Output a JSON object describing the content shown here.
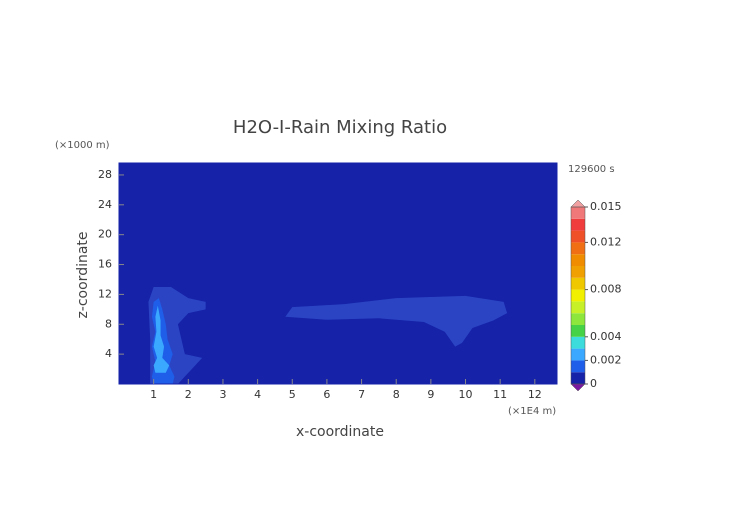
{
  "chart_data": {
    "type": "contour",
    "title": "H2O-I-Rain Mixing Ratio",
    "x_label": "x-coordinate",
    "y_label": "z-coordinate",
    "x_unit": "(×1E4 m)",
    "y_unit": "(×1000 m)",
    "time_label": "129600 s",
    "xlim": [
      0,
      12.64
    ],
    "ylim": [
      0,
      29.6
    ],
    "xticks": [
      1,
      2,
      3,
      4,
      5,
      6,
      7,
      8,
      9,
      10,
      11,
      12
    ],
    "yticks": [
      4,
      8,
      12,
      16,
      20,
      24,
      28
    ],
    "background_color": "#1622a8",
    "contours": [
      {
        "level": 0.0005,
        "color": "#2a44c4",
        "points": [
          [
            0.9,
            0
          ],
          [
            1.7,
            0
          ],
          [
            2.1,
            2
          ],
          [
            2.4,
            3.5
          ],
          [
            1.9,
            4
          ],
          [
            1.7,
            8
          ],
          [
            2.0,
            9.5
          ],
          [
            2.5,
            10
          ],
          [
            2.5,
            11
          ],
          [
            2.0,
            11.5
          ],
          [
            1.5,
            13
          ],
          [
            1.0,
            13
          ],
          [
            0.85,
            11
          ],
          [
            0.9,
            6
          ]
        ]
      },
      {
        "level": 0.0005,
        "color": "#2a44c4",
        "points": [
          [
            4.8,
            9
          ],
          [
            6,
            8.6
          ],
          [
            7.5,
            8.8
          ],
          [
            8.8,
            8.3
          ],
          [
            9.4,
            7
          ],
          [
            9.7,
            5
          ],
          [
            9.9,
            5.5
          ],
          [
            10.2,
            7.5
          ],
          [
            10.8,
            8.5
          ],
          [
            11.2,
            9.5
          ],
          [
            11.1,
            11
          ],
          [
            10,
            11.8
          ],
          [
            8,
            11.5
          ],
          [
            6.5,
            10.7
          ],
          [
            5,
            10.3
          ]
        ]
      },
      {
        "level": 0.001,
        "color": "#1e5ee8",
        "points": [
          [
            1.0,
            0
          ],
          [
            1.55,
            0
          ],
          [
            1.6,
            1
          ],
          [
            1.45,
            2.5
          ],
          [
            1.55,
            4
          ],
          [
            1.4,
            6
          ],
          [
            1.35,
            8
          ],
          [
            1.25,
            10
          ],
          [
            1.15,
            11.5
          ],
          [
            1.0,
            11
          ],
          [
            0.95,
            9
          ],
          [
            1.05,
            7
          ],
          [
            0.95,
            5
          ],
          [
            1.05,
            3
          ],
          [
            0.95,
            1
          ]
        ]
      },
      {
        "level": 0.002,
        "color": "#3aa8ff",
        "points": [
          [
            1.05,
            1.5
          ],
          [
            1.35,
            1.5
          ],
          [
            1.45,
            2.5
          ],
          [
            1.25,
            3.5
          ],
          [
            1.3,
            5
          ],
          [
            1.2,
            6.5
          ],
          [
            1.2,
            8.5
          ],
          [
            1.12,
            10.5
          ],
          [
            1.05,
            9
          ],
          [
            1.08,
            7
          ],
          [
            1.0,
            5
          ],
          [
            1.1,
            3.5
          ],
          [
            1.0,
            2.5
          ]
        ]
      }
    ],
    "colorbar": {
      "lim": [
        0,
        0.015
      ],
      "ticks": [
        0,
        0.002,
        0.004,
        0.008,
        0.012,
        0.015
      ],
      "colors": [
        "#1622a8",
        "#1e5ee8",
        "#3aa8ff",
        "#3cdcdc",
        "#46d246",
        "#8ce63c",
        "#c8f028",
        "#f0f000",
        "#f0c800",
        "#f0a000",
        "#f08c00",
        "#f06e14",
        "#f05028",
        "#f03c3c",
        "#f07878"
      ],
      "under_color": "#7a1aa0",
      "over_color": "#f0a0a0"
    }
  }
}
